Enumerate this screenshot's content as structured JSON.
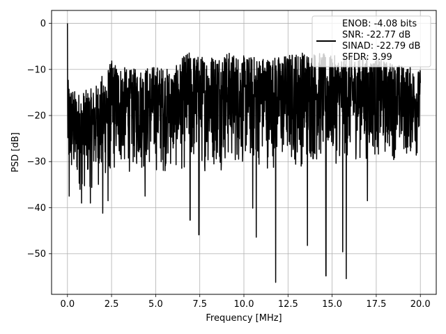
{
  "chart_data": {
    "type": "line",
    "xlabel": "Frequency [MHz]",
    "ylabel": "PSD [dB]",
    "xlim": [
      -0.9,
      20.9
    ],
    "ylim": [
      -58.8,
      2.8
    ],
    "xticks": [
      0.0,
      2.5,
      5.0,
      7.5,
      10.0,
      12.5,
      15.0,
      17.5,
      20.0
    ],
    "xtick_labels": [
      "0.0",
      "2.5",
      "5.0",
      "7.5",
      "10.0",
      "12.5",
      "15.0",
      "17.5",
      "20.0"
    ],
    "yticks": [
      0,
      -10,
      -20,
      -30,
      -40,
      -50
    ],
    "ytick_labels": [
      "0",
      "−10",
      "−20",
      "−30",
      "−40",
      "−50"
    ],
    "grid": true,
    "legend": {
      "placement": "top-right",
      "line_color": "#000000",
      "entries": [
        "ENOB: -4.08 bits",
        "SNR: -22.77 dB",
        "SINAD: -22.79 dB",
        "SFDR: 3.99"
      ]
    },
    "series": [
      {
        "color": "#000000",
        "x_start": 0.0,
        "x_end": 20.0,
        "dc_peak": 0.0,
        "noise_floor_upper_envelope": [
          [
            0.0,
            -12
          ],
          [
            0.5,
            -15
          ],
          [
            1.5,
            -14
          ],
          [
            2.5,
            -8
          ],
          [
            3.5,
            -10
          ],
          [
            5.0,
            -9
          ],
          [
            6.0,
            -10
          ],
          [
            6.8,
            -6
          ],
          [
            7.5,
            -7
          ],
          [
            9.0,
            -6
          ],
          [
            10.0,
            -7
          ],
          [
            11.0,
            -7
          ],
          [
            12.0,
            -7
          ],
          [
            13.0,
            -6
          ],
          [
            14.0,
            -6
          ],
          [
            15.0,
            -7
          ],
          [
            16.0,
            -7
          ],
          [
            17.0,
            -7
          ],
          [
            18.0,
            -8
          ],
          [
            19.0,
            -9
          ],
          [
            20.0,
            -10
          ]
        ],
        "noise_floor_lower_envelope": [
          [
            0.0,
            -37
          ],
          [
            1.0,
            -37
          ],
          [
            2.0,
            -36
          ],
          [
            3.0,
            -33
          ],
          [
            5.0,
            -33
          ],
          [
            7.0,
            -33
          ],
          [
            9.0,
            -32
          ],
          [
            11.0,
            -32
          ],
          [
            13.0,
            -32
          ],
          [
            15.0,
            -31
          ],
          [
            17.0,
            -30
          ],
          [
            20.0,
            -30
          ]
        ],
        "notable_dips": [
          [
            0.1,
            -37.5
          ],
          [
            0.8,
            -39
          ],
          [
            1.3,
            -39
          ],
          [
            2.0,
            -41.2
          ],
          [
            2.3,
            -38.5
          ],
          [
            4.4,
            -37.5
          ],
          [
            6.95,
            -42.7
          ],
          [
            7.45,
            -45.9
          ],
          [
            10.5,
            -40.1
          ],
          [
            10.7,
            -46.4
          ],
          [
            11.8,
            -56.2
          ],
          [
            13.6,
            -48.2
          ],
          [
            14.65,
            -54.8
          ],
          [
            15.6,
            -49.6
          ],
          [
            15.8,
            -55.4
          ],
          [
            17.0,
            -38.5
          ]
        ]
      }
    ]
  }
}
